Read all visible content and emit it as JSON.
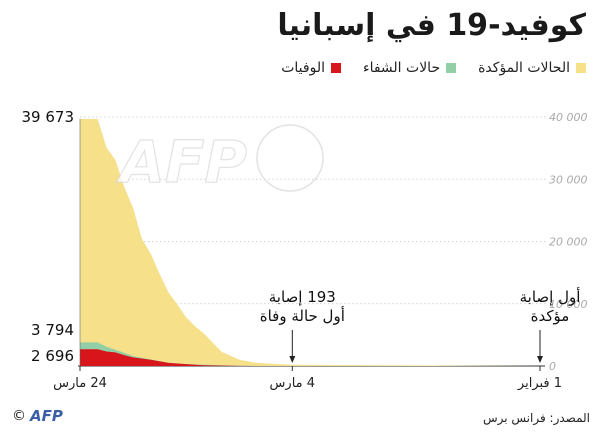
{
  "title": "كوفيد-19 في إسبانيا",
  "legend": {
    "confirmed": "الحالات المؤكدة",
    "recovered": "حالات الشفاء",
    "deaths": "الوفيات"
  },
  "colors": {
    "confirmed": "#f6e08a",
    "recovered": "#93cfa6",
    "deaths": "#d7151b",
    "grid": "#c6c6c6",
    "ytick": "#a9a9a9"
  },
  "chart_data": {
    "type": "area",
    "title": "كوفيد-19 في إسبانيا",
    "x_labels": [
      "24 مارس",
      "4 مارس",
      "1 فبراير"
    ],
    "y_ticks": [
      "0",
      "10 000",
      "20 000",
      "30 000",
      "40 000"
    ],
    "ylim": [
      0,
      40000
    ],
    "x_range_days": [
      0,
      52
    ],
    "series": [
      {
        "name": "الحالات المؤكدة",
        "key": "confirmed",
        "days": [
          0,
          28,
          30,
          32,
          34,
          36,
          38,
          39,
          40,
          41,
          42,
          43,
          44,
          45,
          46,
          47,
          48,
          49,
          50,
          51,
          52
        ],
        "values": [
          1,
          193,
          340,
          500,
          1000,
          2300,
          5230,
          6390,
          7800,
          9900,
          11800,
          14800,
          18000,
          20400,
          25400,
          28800,
          33100,
          35100,
          39673,
          39673,
          39673
        ]
      },
      {
        "name": "حالات الشفاء",
        "key": "recovered",
        "days": [
          0,
          30,
          34,
          38,
          40,
          42,
          44,
          46,
          47,
          48,
          49,
          50,
          52
        ],
        "values": [
          0,
          0,
          30,
          200,
          300,
          520,
          1050,
          1590,
          2130,
          2600,
          3100,
          3794,
          3794
        ]
      },
      {
        "name": "الوفيات",
        "key": "deaths",
        "days": [
          0,
          30,
          34,
          38,
          40,
          42,
          44,
          46,
          47,
          48,
          49,
          50,
          52
        ],
        "values": [
          0,
          2,
          17,
          120,
          300,
          500,
          1000,
          1380,
          1750,
          2180,
          2330,
          2696,
          2696
        ]
      }
    ],
    "value_labels": [
      "39 673",
      "3 794",
      "2 696"
    ],
    "annotations": [
      {
        "text_line1": "193 إصابة",
        "text_line2": "أول حالة وفاة",
        "day": 28
      },
      {
        "text_line1": "أول إصابة",
        "text_line2": "مؤكدة",
        "day": 0
      }
    ]
  },
  "source": "المصدر: فرانس برس",
  "copyright": "©",
  "logo": "AFP",
  "watermark": "AFP"
}
